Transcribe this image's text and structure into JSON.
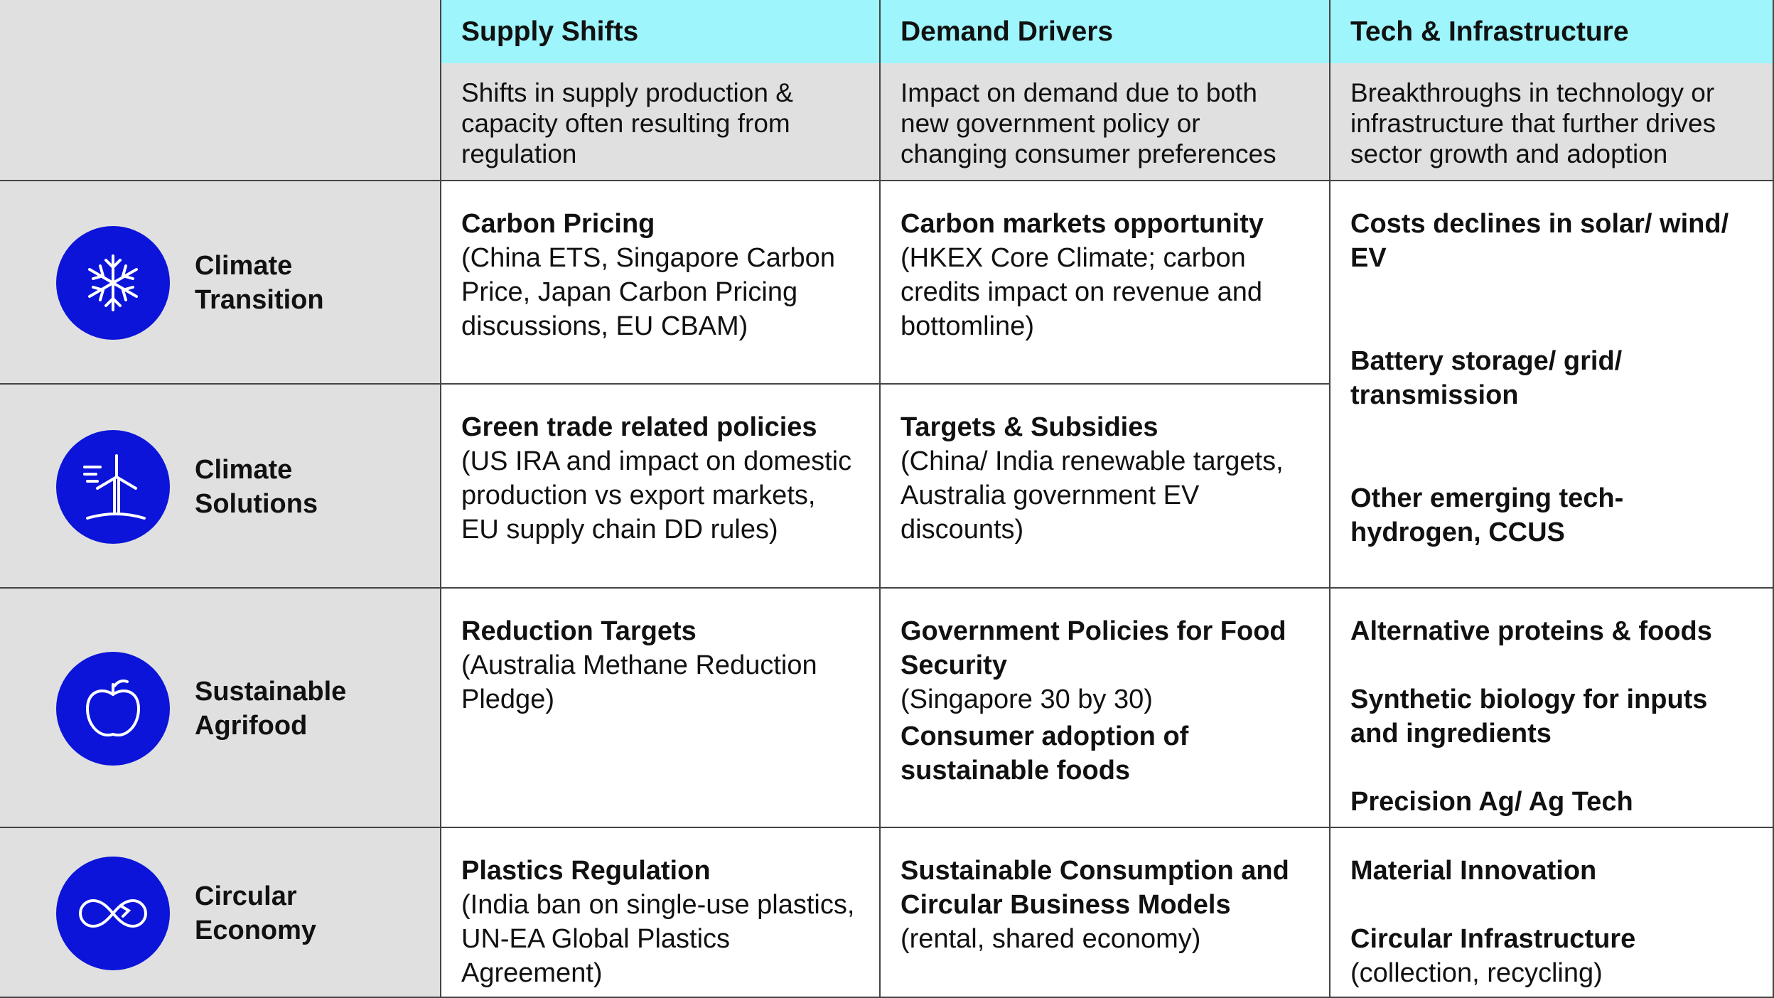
{
  "columns": [
    {
      "title": "Supply Shifts",
      "description": "Shifts in supply production & capacity often resulting from regulation"
    },
    {
      "title": "Demand Drivers",
      "description": "Impact on demand due to both new government policy or changing consumer preferences"
    },
    {
      "title": "Tech & Infrastructure",
      "description": "Breakthroughs in technology or infrastructure that further drives sector growth and adoption"
    }
  ],
  "rows": [
    {
      "label": "Climate Transition",
      "cells": [
        [
          {
            "title": "Carbon Pricing",
            "detail": "(China ETS, Singapore Carbon Price, Japan Carbon Pricing discussions, EU CBAM)"
          }
        ],
        [
          {
            "title": "Carbon markets opportunity",
            "detail": "(HKEX Core Climate; carbon credits impact on revenue and bottomline)"
          }
        ],
        [
          {
            "title": "Costs declines in solar/ wind/ EV"
          },
          {
            "title": "Battery storage/ grid/ transmission"
          },
          {
            "title": "Other emerging tech- hydrogen, CCUS"
          }
        ]
      ]
    },
    {
      "label": "Climate Solutions",
      "cells": [
        [
          {
            "title": "Green trade related policies",
            "detail": "(US IRA and impact on domestic production vs export markets, EU supply chain DD rules)"
          }
        ],
        [
          {
            "title": "Targets & Subsidies",
            "detail": "(China/ India renewable targets, Australia government EV discounts)"
          }
        ]
      ]
    },
    {
      "label": "Sustainable Agrifood",
      "cells": [
        [
          {
            "title": "Reduction Targets",
            "detail": "(Australia Methane Reduction Pledge)"
          }
        ],
        [
          {
            "title": "Government Policies for Food Security",
            "detail": "(Singapore 30 by 30)"
          },
          {
            "title": "Consumer adoption of sustainable foods"
          }
        ],
        [
          {
            "title": "Alternative proteins & foods"
          },
          {
            "title": "Synthetic biology for inputs and ingredients"
          },
          {
            "title": "Precision Ag/ Ag Tech"
          }
        ]
      ]
    },
    {
      "label": "Circular Economy",
      "cells": [
        [
          {
            "title": "Plastics Regulation",
            "detail": "(India ban on single-use plastics, UN-EA Global Plastics Agreement)"
          }
        ],
        [
          {
            "title": "Sustainable Consumption and Circular Business Models",
            "detail": "(rental, shared economy)"
          }
        ],
        [
          {
            "title": "Material Innovation"
          },
          {
            "title": "Circular Infrastructure",
            "detail": "(collection, recycling)"
          }
        ]
      ]
    }
  ]
}
